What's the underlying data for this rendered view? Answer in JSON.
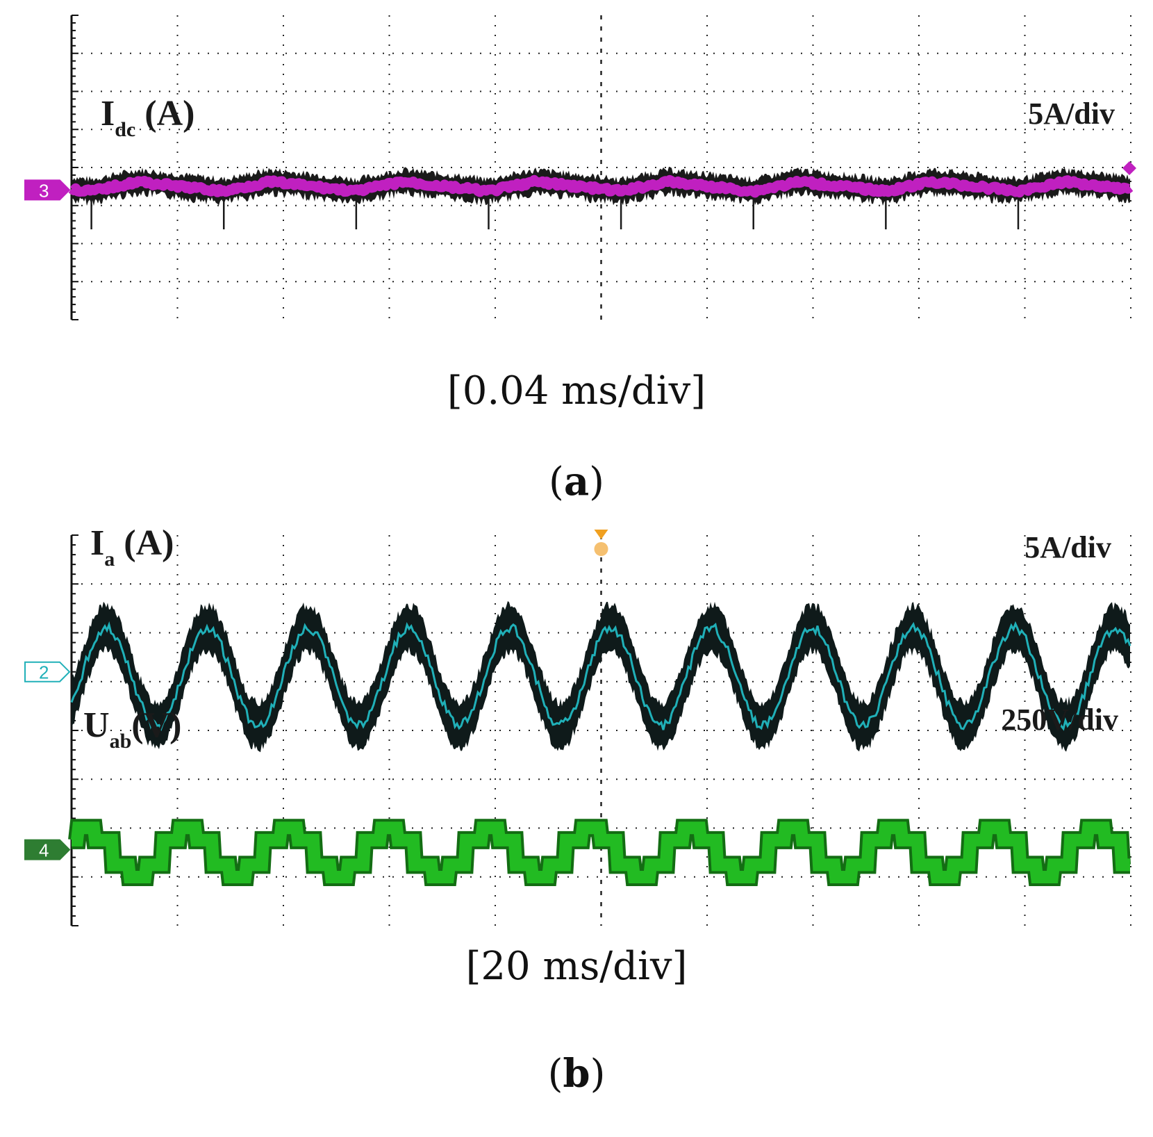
{
  "chart_data": [
    {
      "type": "line",
      "panel": "a",
      "label": "(a)",
      "panel_letter": "a",
      "timebase": "[0.04 ms/div]",
      "grid": true,
      "x_divisions": 10,
      "y_divisions": 8,
      "series": [
        {
          "name": "I_dc (A)",
          "label_main": "I",
          "label_sub": "dc",
          "label_rest": " (A)",
          "channel": "3",
          "scale": "5A/div",
          "color": "#c020c0",
          "description_values": {
            "ripple_periods": 8,
            "ripple_amplitude_div": 0.25
          }
        }
      ]
    },
    {
      "type": "line",
      "panel": "b",
      "label": "(b)",
      "panel_letter": "b",
      "timebase": "[20 ms/div]",
      "grid": true,
      "x_divisions": 10,
      "y_divisions": 8,
      "series": [
        {
          "name": "I_a (A)",
          "label_main": "I",
          "label_sub": "a",
          "label_rest": " (A)",
          "channel": "2",
          "scale": "5A/div",
          "color": "#20b0b8",
          "description_values": {
            "periods": 10.5,
            "amplitude_div": 1.0
          }
        },
        {
          "name": "U_ab (V)",
          "label_main": "U",
          "label_sub": "ab",
          "label_rest": "(V)",
          "channel": "4",
          "scale": "250V/div",
          "color": "#22bb22",
          "description_values": {
            "periods": 10.5,
            "amplitude_div": 0.35
          }
        }
      ]
    }
  ]
}
